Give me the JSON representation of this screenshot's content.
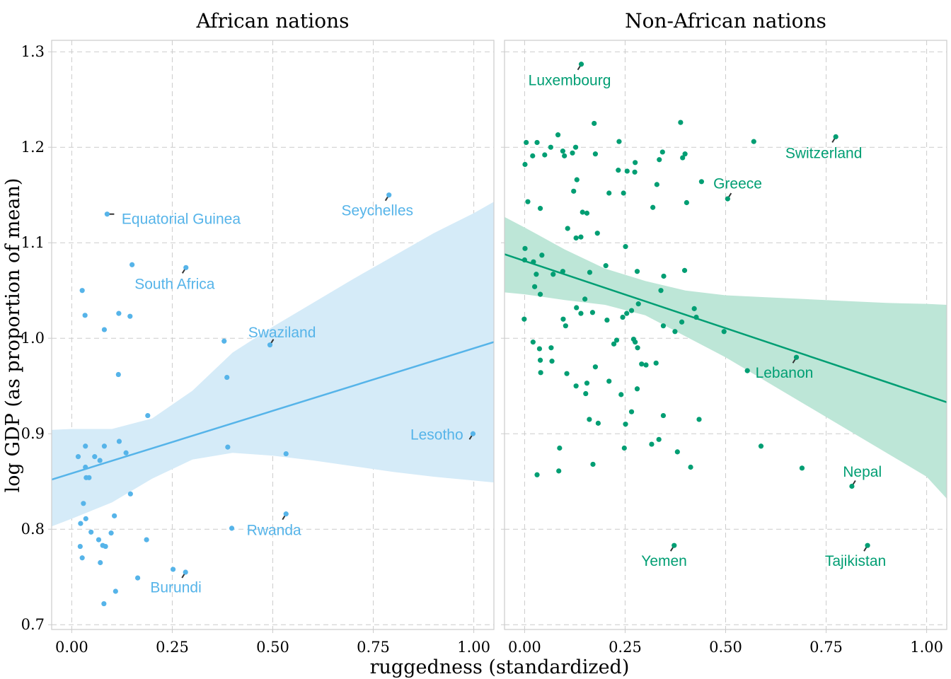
{
  "chart_data": {
    "type": "scatter",
    "xlabel": "ruggedness (standardized)",
    "ylabel": "log GDP (as proportion of mean)",
    "xlim": [
      -0.05,
      1.05
    ],
    "ylim": [
      0.695,
      1.312
    ],
    "x_ticks": [
      "0.00",
      "0.25",
      "0.50",
      "0.75",
      "1.00"
    ],
    "y_ticks": [
      "0.7",
      "0.8",
      "0.9",
      "1.0",
      "1.1",
      "1.2",
      "1.3"
    ],
    "grid": true,
    "panels": [
      {
        "title": "African nations",
        "color": "#56B4E9",
        "fill": "#D5EBF8",
        "trend": {
          "x": [
            -0.05,
            1.05
          ],
          "y": [
            0.852,
            0.996
          ]
        },
        "band": {
          "x": [
            -0.05,
            0.0,
            0.1,
            0.2,
            0.3,
            0.4,
            0.5,
            0.6,
            0.7,
            0.8,
            0.9,
            1.0,
            1.05
          ],
          "upper": [
            0.904,
            0.905,
            0.905,
            0.916,
            0.945,
            0.985,
            1.012,
            1.037,
            1.062,
            1.086,
            1.11,
            1.131,
            1.143
          ],
          "lower": [
            0.803,
            0.811,
            0.828,
            0.853,
            0.873,
            0.88,
            0.877,
            0.872,
            0.866,
            0.86,
            0.855,
            0.851,
            0.849
          ]
        },
        "points": [
          [
            0.088,
            1.13
          ],
          [
            0.15,
            1.077
          ],
          [
            0.284,
            1.074
          ],
          [
            0.026,
            1.05
          ],
          [
            0.033,
            1.024
          ],
          [
            0.117,
            1.026
          ],
          [
            0.145,
            1.023
          ],
          [
            0.081,
            1.009
          ],
          [
            0.379,
            0.997
          ],
          [
            0.493,
            0.993
          ],
          [
            0.116,
            0.962
          ],
          [
            0.386,
            0.959
          ],
          [
            0.189,
            0.919
          ],
          [
            0.998,
            0.9
          ],
          [
            0.118,
            0.892
          ],
          [
            0.034,
            0.887
          ],
          [
            0.081,
            0.887
          ],
          [
            0.388,
            0.886
          ],
          [
            0.135,
            0.88
          ],
          [
            0.533,
            0.879
          ],
          [
            0.016,
            0.876
          ],
          [
            0.057,
            0.876
          ],
          [
            0.07,
            0.872
          ],
          [
            0.034,
            0.865
          ],
          [
            0.036,
            0.854
          ],
          [
            0.043,
            0.854
          ],
          [
            0.146,
            0.837
          ],
          [
            0.029,
            0.827
          ],
          [
            0.533,
            0.816
          ],
          [
            0.106,
            0.814
          ],
          [
            0.035,
            0.811
          ],
          [
            0.022,
            0.806
          ],
          [
            0.398,
            0.801
          ],
          [
            0.048,
            0.797
          ],
          [
            0.098,
            0.796
          ],
          [
            0.067,
            0.789
          ],
          [
            0.186,
            0.789
          ],
          [
            0.077,
            0.783
          ],
          [
            0.084,
            0.782
          ],
          [
            0.021,
            0.782
          ],
          [
            0.026,
            0.77
          ],
          [
            0.071,
            0.765
          ],
          [
            0.252,
            0.758
          ],
          [
            0.283,
            0.755
          ],
          [
            0.164,
            0.749
          ],
          [
            0.109,
            0.735
          ],
          [
            0.08,
            0.722
          ],
          [
            0.789,
            1.15
          ]
        ],
        "labels": [
          {
            "text": "Equatorial Guinea",
            "x": 0.088,
            "y": 1.13,
            "lx": 0.272,
            "ly": 1.125
          },
          {
            "text": "South Africa",
            "x": 0.284,
            "y": 1.074,
            "lx": 0.256,
            "ly": 1.057
          },
          {
            "text": "Seychelles",
            "x": 0.789,
            "y": 1.15,
            "lx": 0.76,
            "ly": 1.134
          },
          {
            "text": "Swaziland",
            "x": 0.493,
            "y": 0.993,
            "lx": 0.523,
            "ly": 1.006
          },
          {
            "text": "Lesotho",
            "x": 0.998,
            "y": 0.9,
            "lx": 0.908,
            "ly": 0.899
          },
          {
            "text": "Rwanda",
            "x": 0.533,
            "y": 0.816,
            "lx": 0.503,
            "ly": 0.799
          },
          {
            "text": "Burundi",
            "x": 0.283,
            "y": 0.755,
            "lx": 0.259,
            "ly": 0.739
          }
        ]
      },
      {
        "title": "Non-African nations",
        "color": "#009E73",
        "fill": "#BDE6D7",
        "trend": {
          "x": [
            -0.05,
            1.05
          ],
          "y": [
            1.088,
            0.933
          ]
        },
        "band": {
          "x": [
            -0.05,
            0.0,
            0.1,
            0.2,
            0.3,
            0.4,
            0.5,
            0.6,
            0.7,
            0.8,
            0.9,
            1.0,
            1.05
          ],
          "upper": [
            1.127,
            1.116,
            1.093,
            1.073,
            1.06,
            1.05,
            1.045,
            1.043,
            1.041,
            1.039,
            1.037,
            1.036,
            1.035
          ],
          "lower": [
            1.048,
            1.046,
            1.04,
            1.035,
            1.024,
            1.002,
            0.98,
            0.955,
            0.93,
            0.905,
            0.88,
            0.855,
            0.832
          ]
        },
        "points": [
          [
            0.141,
            1.287
          ],
          [
            0.774,
            1.211
          ],
          [
            0.505,
            1.146
          ],
          [
            0.676,
            0.98
          ],
          [
            0.554,
            0.966
          ],
          [
            0.814,
            0.845
          ],
          [
            0.372,
            0.783
          ],
          [
            0.853,
            0.783
          ],
          [
            0.388,
            1.226
          ],
          [
            0.173,
            1.225
          ],
          [
            0.083,
            1.213
          ],
          [
            0.004,
            1.205
          ],
          [
            0.031,
            1.205
          ],
          [
            0.235,
            1.206
          ],
          [
            0.57,
            1.206
          ],
          [
            0.065,
            1.2
          ],
          [
            0.127,
            1.2
          ],
          [
            0.095,
            1.196
          ],
          [
            0.343,
            1.195
          ],
          [
            0.02,
            1.191
          ],
          [
            0.05,
            1.192
          ],
          [
            0.099,
            1.191
          ],
          [
            0.119,
            1.194
          ],
          [
            0.176,
            1.193
          ],
          [
            0.399,
            1.193
          ],
          [
            0.393,
            1.189
          ],
          [
            0.335,
            1.187
          ],
          [
            0.275,
            1.184
          ],
          [
            0.001,
            1.182
          ],
          [
            0.233,
            1.176
          ],
          [
            0.255,
            1.175
          ],
          [
            0.274,
            1.174
          ],
          [
            0.44,
            1.164
          ],
          [
            0.13,
            1.166
          ],
          [
            0.329,
            1.161
          ],
          [
            0.122,
            1.154
          ],
          [
            0.21,
            1.152
          ],
          [
            0.246,
            1.152
          ],
          [
            0.008,
            1.143
          ],
          [
            0.403,
            1.142
          ],
          [
            0.039,
            1.136
          ],
          [
            0.319,
            1.137
          ],
          [
            0.144,
            1.132
          ],
          [
            0.155,
            1.131
          ],
          [
            0.107,
            1.115
          ],
          [
            0.181,
            1.11
          ],
          [
            0.14,
            1.106
          ],
          [
            0.128,
            1.105
          ],
          [
            0.001,
            1.094
          ],
          [
            0.251,
            1.096
          ],
          [
            0.043,
            1.087
          ],
          [
            0.0,
            1.082
          ],
          [
            0.022,
            1.08
          ],
          [
            0.202,
            1.076
          ],
          [
            0.029,
            1.067
          ],
          [
            0.071,
            1.067
          ],
          [
            0.095,
            1.07
          ],
          [
            0.162,
            1.069
          ],
          [
            0.28,
            1.07
          ],
          [
            0.346,
            1.065
          ],
          [
            0.398,
            1.071
          ],
          [
            0.025,
            1.054
          ],
          [
            0.339,
            1.05
          ],
          [
            0.039,
            1.046
          ],
          [
            0.15,
            1.041
          ],
          [
            0.283,
            1.036
          ],
          [
            0.129,
            1.032
          ],
          [
            0.266,
            1.029
          ],
          [
            0.422,
            1.031
          ],
          [
            0.14,
            1.026
          ],
          [
            0.169,
            1.027
          ],
          [
            0.254,
            1.026
          ],
          [
            0.427,
            1.022
          ],
          [
            0.244,
            1.022
          ],
          [
            -0.001,
            1.02
          ],
          [
            0.096,
            1.02
          ],
          [
            0.205,
            1.019
          ],
          [
            0.391,
            1.017
          ],
          [
            0.102,
            1.013
          ],
          [
            0.345,
            1.013
          ],
          [
            0.496,
            1.007
          ],
          [
            0.374,
            1.007
          ],
          [
            0.271,
            0.999
          ],
          [
            0.229,
            0.998
          ],
          [
            0.275,
            0.996
          ],
          [
            0.021,
            0.996
          ],
          [
            0.222,
            0.994
          ],
          [
            0.037,
            0.989
          ],
          [
            0.066,
            0.99
          ],
          [
            0.281,
            0.99
          ],
          [
            0.039,
            0.977
          ],
          [
            0.068,
            0.976
          ],
          [
            0.291,
            0.973
          ],
          [
            0.302,
            0.972
          ],
          [
            0.327,
            0.974
          ],
          [
            0.176,
            0.97
          ],
          [
            0.04,
            0.964
          ],
          [
            0.105,
            0.963
          ],
          [
            0.155,
            0.953
          ],
          [
            0.128,
            0.95
          ],
          [
            0.21,
            0.955
          ],
          [
            0.28,
            0.947
          ],
          [
            0.152,
            0.942
          ],
          [
            0.24,
            0.941
          ],
          [
            0.266,
            0.923
          ],
          [
            0.345,
            0.919
          ],
          [
            0.183,
            0.911
          ],
          [
            0.161,
            0.915
          ],
          [
            0.251,
            0.91
          ],
          [
            0.434,
            0.915
          ],
          [
            0.334,
            0.894
          ],
          [
            0.316,
            0.889
          ],
          [
            0.588,
            0.887
          ],
          [
            0.087,
            0.885
          ],
          [
            0.248,
            0.885
          ],
          [
            0.38,
            0.881
          ],
          [
            0.17,
            0.868
          ],
          [
            0.413,
            0.865
          ],
          [
            0.085,
            0.861
          ],
          [
            0.031,
            0.857
          ],
          [
            0.69,
            0.864
          ]
        ],
        "labels": [
          {
            "text": "Luxembourg",
            "x": 0.141,
            "y": 1.287,
            "lx": 0.112,
            "ly": 1.27
          },
          {
            "text": "Switzerland",
            "x": 0.774,
            "y": 1.211,
            "lx": 0.744,
            "ly": 1.194
          },
          {
            "text": "Greece",
            "x": 0.505,
            "y": 1.146,
            "lx": 0.53,
            "ly": 1.162
          },
          {
            "text": "Lebanon",
            "x": 0.676,
            "y": 0.98,
            "lx": 0.646,
            "ly": 0.964
          },
          {
            "text": "Nepal",
            "x": 0.814,
            "y": 0.845,
            "lx": 0.84,
            "ly": 0.86
          },
          {
            "text": "Yemen",
            "x": 0.372,
            "y": 0.783,
            "lx": 0.347,
            "ly": 0.767
          },
          {
            "text": "Tajikistan",
            "x": 0.853,
            "y": 0.783,
            "lx": 0.823,
            "ly": 0.767
          }
        ]
      }
    ]
  }
}
